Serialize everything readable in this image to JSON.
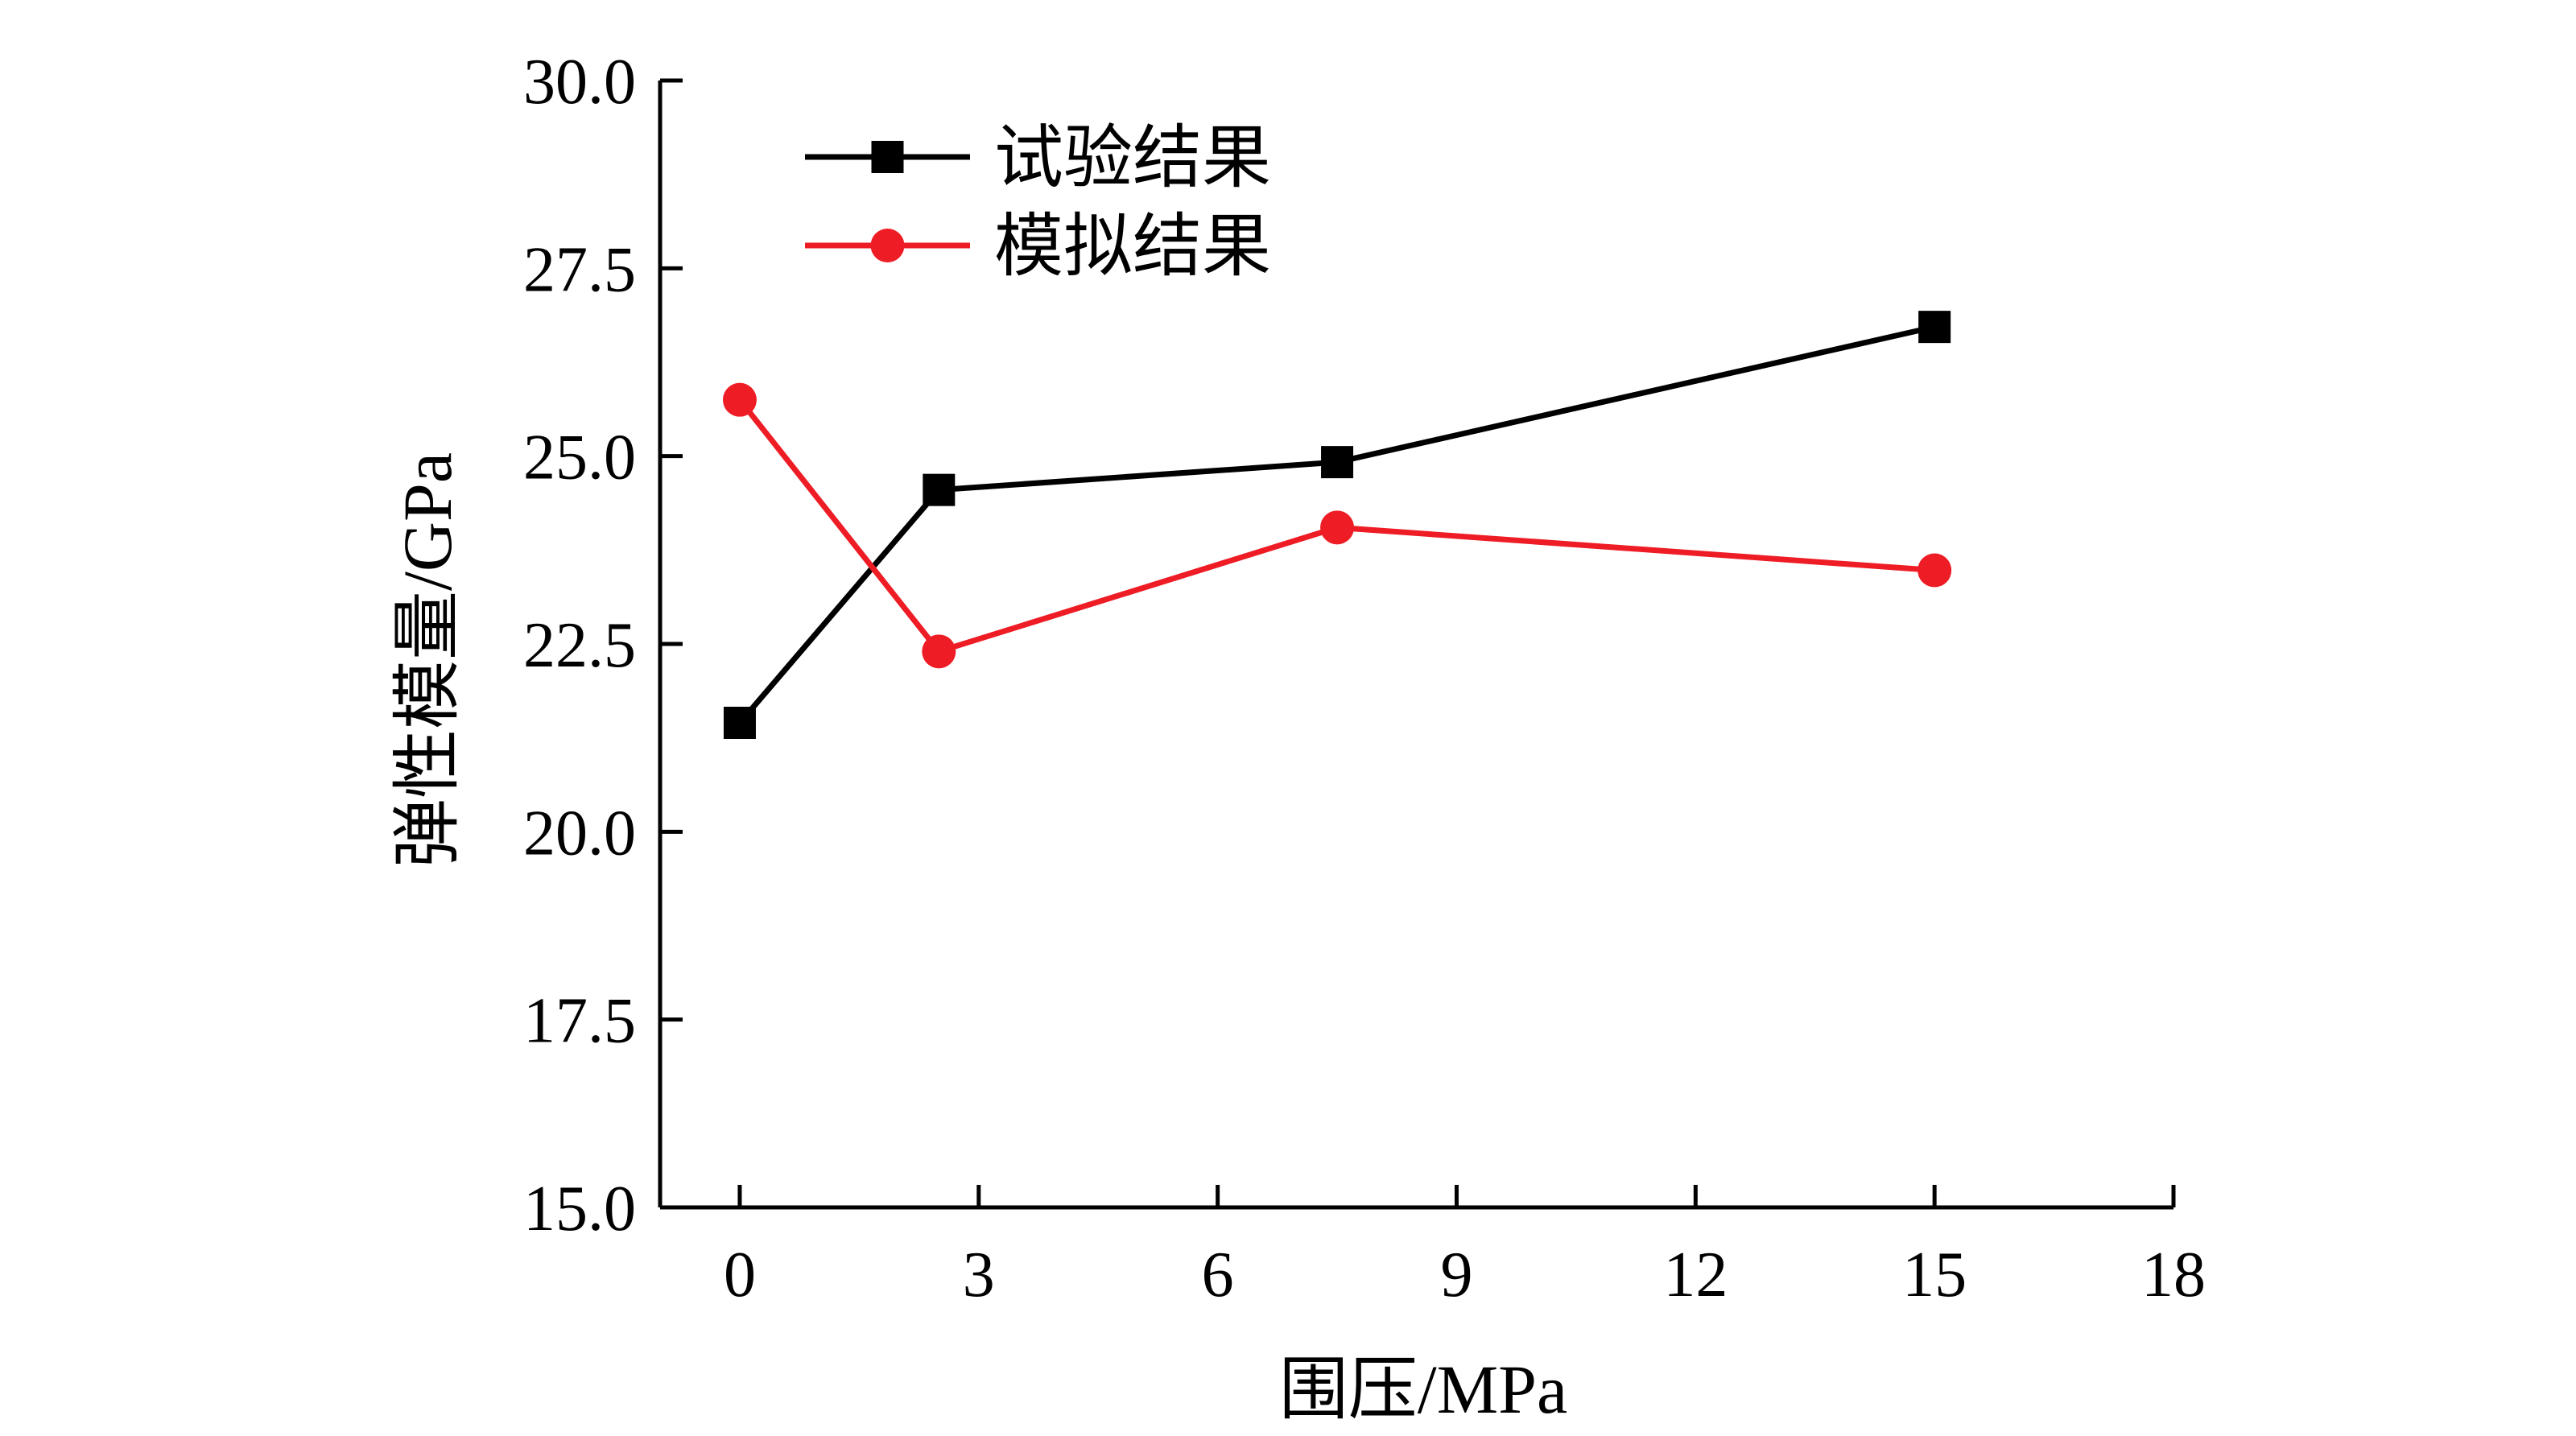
{
  "chart_data": {
    "type": "line",
    "xlabel": "围压/MPa",
    "ylabel": "弹性模量/GPa",
    "xlim": [
      -1,
      18
    ],
    "ylim": [
      15.0,
      30.0
    ],
    "xticks": [
      0,
      3,
      6,
      9,
      12,
      15,
      18
    ],
    "yticks": [
      15.0,
      17.5,
      20.0,
      22.5,
      25.0,
      27.5,
      30.0
    ],
    "ytick_labels": [
      "15.0",
      "17.5",
      "20.0",
      "22.5",
      "25.0",
      "27.5",
      "30.0"
    ],
    "xtick_labels": [
      "0",
      "3",
      "6",
      "9",
      "12",
      "15",
      "18"
    ],
    "grid": false,
    "legend_position": "top-left",
    "x": [
      0,
      2.5,
      7.5,
      15
    ],
    "series": [
      {
        "name": "试验结果",
        "color": "#000000",
        "marker": "square",
        "values": [
          21.45,
          24.55,
          24.92,
          26.72
        ]
      },
      {
        "name": "模拟结果",
        "color": "#ee1c25",
        "marker": "circle",
        "values": [
          25.75,
          22.4,
          24.05,
          23.48
        ]
      }
    ]
  }
}
